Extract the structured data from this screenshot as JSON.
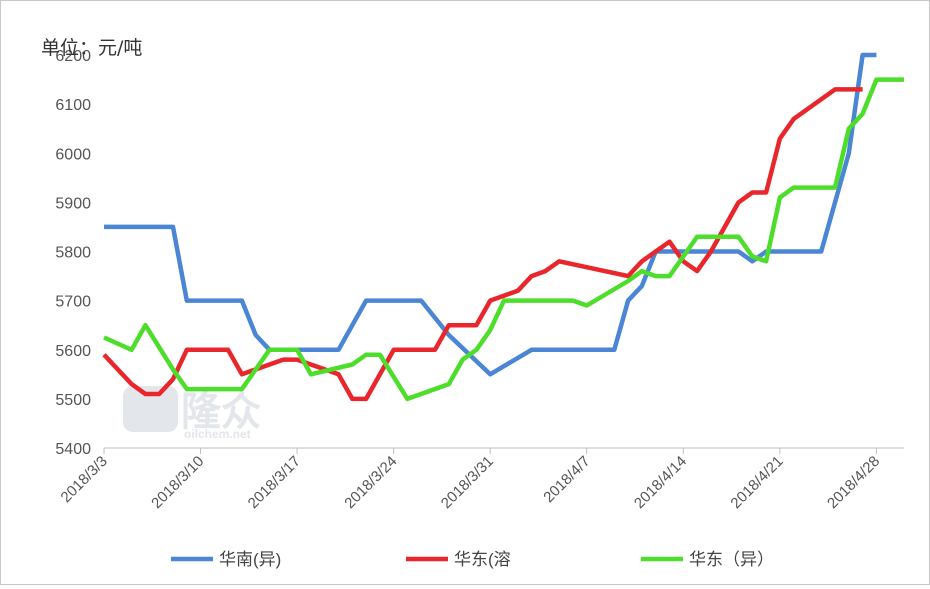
{
  "chart_data": {
    "type": "line",
    "unit_label": "单位：元/吨",
    "ylim": [
      5400,
      6200
    ],
    "yticks": [
      5400,
      5500,
      5600,
      5700,
      5800,
      5900,
      6000,
      6100,
      6200
    ],
    "x_start": "2018-03-03",
    "x_end": "2018-04-30",
    "xticks": [
      "2018/3/3",
      "2018/3/10",
      "2018/3/17",
      "2018/3/24",
      "2018/3/31",
      "2018/4/7",
      "2018/4/14",
      "2018/4/21",
      "2018/4/28"
    ],
    "legend_position": "bottom",
    "watermark": "隆众 oilchem.net",
    "series": [
      {
        "name": "华南(异)",
        "color": "#4a86d4",
        "points": [
          [
            "2018-03-03",
            5850
          ],
          [
            "2018-03-08",
            5850
          ],
          [
            "2018-03-09",
            5700
          ],
          [
            "2018-03-13",
            5700
          ],
          [
            "2018-03-14",
            5630
          ],
          [
            "2018-03-15",
            5600
          ],
          [
            "2018-03-20",
            5600
          ],
          [
            "2018-03-22",
            5700
          ],
          [
            "2018-03-26",
            5700
          ],
          [
            "2018-03-28",
            5630
          ],
          [
            "2018-03-31",
            5550
          ],
          [
            "2018-04-03",
            5600
          ],
          [
            "2018-04-09",
            5600
          ],
          [
            "2018-04-10",
            5700
          ],
          [
            "2018-04-11",
            5730
          ],
          [
            "2018-04-12",
            5800
          ],
          [
            "2018-04-18",
            5800
          ],
          [
            "2018-04-19",
            5780
          ],
          [
            "2018-04-20",
            5800
          ],
          [
            "2018-04-24",
            5800
          ],
          [
            "2018-04-26",
            6000
          ],
          [
            "2018-04-27",
            6200
          ],
          [
            "2018-04-28",
            6200
          ]
        ]
      },
      {
        "name": "华东(溶",
        "color": "#e8262b",
        "points": [
          [
            "2018-03-03",
            5590
          ],
          [
            "2018-03-05",
            5530
          ],
          [
            "2018-03-06",
            5510
          ],
          [
            "2018-03-07",
            5510
          ],
          [
            "2018-03-08",
            5540
          ],
          [
            "2018-03-09",
            5600
          ],
          [
            "2018-03-12",
            5600
          ],
          [
            "2018-03-13",
            5550
          ],
          [
            "2018-03-14",
            5560
          ],
          [
            "2018-03-16",
            5580
          ],
          [
            "2018-03-17",
            5580
          ],
          [
            "2018-03-19",
            5560
          ],
          [
            "2018-03-20",
            5550
          ],
          [
            "2018-03-21",
            5500
          ],
          [
            "2018-03-22",
            5500
          ],
          [
            "2018-03-24",
            5600
          ],
          [
            "2018-03-27",
            5600
          ],
          [
            "2018-03-28",
            5650
          ],
          [
            "2018-03-30",
            5650
          ],
          [
            "2018-03-31",
            5700
          ],
          [
            "2018-04-02",
            5720
          ],
          [
            "2018-04-03",
            5750
          ],
          [
            "2018-04-04",
            5760
          ],
          [
            "2018-04-05",
            5780
          ],
          [
            "2018-04-10",
            5750
          ],
          [
            "2018-04-11",
            5780
          ],
          [
            "2018-04-13",
            5820
          ],
          [
            "2018-04-14",
            5780
          ],
          [
            "2018-04-15",
            5760
          ],
          [
            "2018-04-16",
            5800
          ],
          [
            "2018-04-18",
            5900
          ],
          [
            "2018-04-19",
            5920
          ],
          [
            "2018-04-20",
            5920
          ],
          [
            "2018-04-21",
            6030
          ],
          [
            "2018-04-22",
            6070
          ],
          [
            "2018-04-25",
            6130
          ],
          [
            "2018-04-27",
            6130
          ]
        ]
      },
      {
        "name": "华东（异）",
        "color": "#4ddd2b",
        "points": [
          [
            "2018-03-03",
            5625
          ],
          [
            "2018-03-05",
            5600
          ],
          [
            "2018-03-06",
            5650
          ],
          [
            "2018-03-08",
            5560
          ],
          [
            "2018-03-09",
            5520
          ],
          [
            "2018-03-13",
            5520
          ],
          [
            "2018-03-15",
            5600
          ],
          [
            "2018-03-17",
            5600
          ],
          [
            "2018-03-18",
            5550
          ],
          [
            "2018-03-21",
            5570
          ],
          [
            "2018-03-22",
            5590
          ],
          [
            "2018-03-23",
            5590
          ],
          [
            "2018-03-25",
            5500
          ],
          [
            "2018-03-28",
            5530
          ],
          [
            "2018-03-29",
            5580
          ],
          [
            "2018-03-30",
            5600
          ],
          [
            "2018-03-31",
            5640
          ],
          [
            "2018-04-01",
            5700
          ],
          [
            "2018-04-06",
            5700
          ],
          [
            "2018-04-07",
            5690
          ],
          [
            "2018-04-10",
            5740
          ],
          [
            "2018-04-11",
            5760
          ],
          [
            "2018-04-12",
            5750
          ],
          [
            "2018-04-13",
            5750
          ],
          [
            "2018-04-15",
            5830
          ],
          [
            "2018-04-18",
            5830
          ],
          [
            "2018-04-19",
            5790
          ],
          [
            "2018-04-20",
            5780
          ],
          [
            "2018-04-21",
            5910
          ],
          [
            "2018-04-22",
            5930
          ],
          [
            "2018-04-25",
            5930
          ],
          [
            "2018-04-26",
            6050
          ],
          [
            "2018-04-27",
            6080
          ],
          [
            "2018-04-28",
            6150
          ],
          [
            "2018-04-30",
            6150
          ]
        ]
      }
    ]
  }
}
